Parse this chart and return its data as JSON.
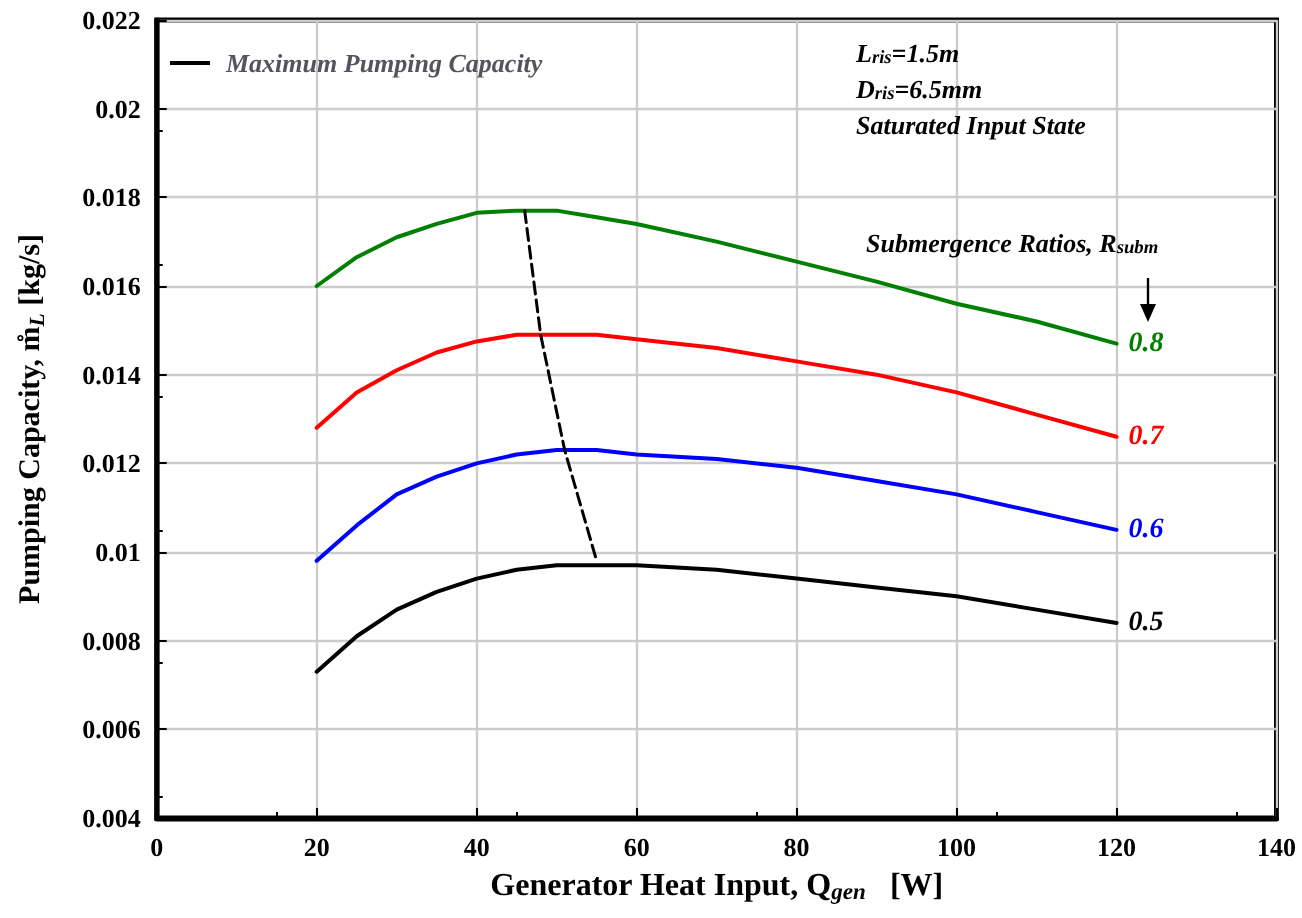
{
  "chart_data": {
    "type": "line",
    "xlabel": "Generator Heat Input, Q$_{gen}$   [W]",
    "ylabel": "Pumping Capacity, m̊$_{L}$ [kg/s]",
    "x": [
      20,
      25,
      30,
      35,
      40,
      45,
      50,
      55,
      60,
      70,
      80,
      90,
      100,
      110,
      120
    ],
    "series": [
      {
        "name": "0.5",
        "color": "#000000",
        "values": [
          0.0073,
          0.0081,
          0.0087,
          0.0091,
          0.0094,
          0.0096,
          0.0097,
          0.0097,
          0.0097,
          0.0096,
          0.0094,
          0.0092,
          0.009,
          0.0087,
          0.0084
        ]
      },
      {
        "name": "0.6",
        "color": "#0000ff",
        "values": [
          0.0098,
          0.0106,
          0.0113,
          0.0117,
          0.012,
          0.0122,
          0.0123,
          0.0123,
          0.0122,
          0.0121,
          0.0119,
          0.0116,
          0.0113,
          0.0109,
          0.0105
        ]
      },
      {
        "name": "0.7",
        "color": "#ff0000",
        "values": [
          0.0128,
          0.0136,
          0.0141,
          0.0145,
          0.01475,
          0.0149,
          0.0149,
          0.0149,
          0.0148,
          0.0146,
          0.0143,
          0.014,
          0.0136,
          0.0131,
          0.0126
        ]
      },
      {
        "name": "0.8",
        "color": "#008000",
        "values": [
          0.016,
          0.01665,
          0.0171,
          0.0174,
          0.01765,
          0.0177,
          0.0177,
          0.01755,
          0.0174,
          0.017,
          0.01655,
          0.0161,
          0.0156,
          0.0152,
          0.0147
        ]
      },
      {
        "name": "Maximum Pumping Capacity",
        "color": "#000000",
        "line_style": "dashed",
        "x": [
          46,
          48,
          51,
          55
        ],
        "values": [
          0.0177,
          0.0149,
          0.0123,
          0.0098
        ]
      }
    ],
    "annotations": [
      "L$_{ris}$=1.5m",
      "D$_{ris}$=6.5mm",
      "Saturated Input State",
      "Submergence Ratios, R$_{subm}$"
    ],
    "xlim": [
      0,
      140
    ],
    "xticks": [
      0,
      20,
      40,
      60,
      80,
      100,
      120,
      140
    ],
    "ylim": [
      0.004,
      0.022
    ],
    "yticks": [
      0.004,
      0.006,
      0.008,
      0.01,
      0.012,
      0.014,
      0.016,
      0.018,
      0.02,
      0.022
    ],
    "grid": true,
    "legend": "top left",
    "marker": "none",
    "line_style": "solid"
  }
}
